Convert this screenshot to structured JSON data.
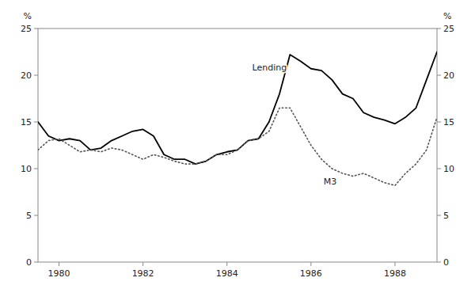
{
  "chart_data": {
    "type": "line",
    "x": [
      1979.5,
      1979.75,
      1980.0,
      1980.25,
      1980.5,
      1980.75,
      1981.0,
      1981.25,
      1981.5,
      1981.75,
      1982.0,
      1982.25,
      1982.5,
      1982.75,
      1983.0,
      1983.25,
      1983.5,
      1983.75,
      1984.0,
      1984.25,
      1984.5,
      1984.75,
      1985.0,
      1985.25,
      1985.5,
      1985.75,
      1986.0,
      1986.25,
      1986.5,
      1986.75,
      1987.0,
      1987.25,
      1987.5,
      1987.75,
      1988.0,
      1988.25,
      1988.5,
      1988.75,
      1989.0
    ],
    "series": [
      {
        "color": "#000000",
        "line_style": "solid",
        "values": [
          15.0,
          13.5,
          13.0,
          13.2,
          13.0,
          12.0,
          12.2,
          13.0,
          13.5,
          14.0,
          14.2,
          13.5,
          11.5,
          11.0,
          11.0,
          10.5,
          10.8,
          11.5,
          11.8,
          12.0,
          13.0,
          13.2,
          15.0,
          18.0,
          22.2,
          21.5,
          20.7,
          20.5,
          19.5,
          18.0,
          17.5,
          16.0,
          15.5,
          15.2,
          14.8,
          15.5,
          16.5,
          19.5,
          22.5
        ]
      },
      {
        "color": "#555555",
        "line_style": "dotted",
        "values": [
          12.0,
          13.0,
          13.2,
          12.5,
          11.8,
          12.0,
          11.8,
          12.2,
          12.0,
          11.5,
          11.0,
          11.5,
          11.2,
          10.8,
          10.5,
          10.5,
          10.8,
          11.5,
          11.5,
          12.0,
          13.0,
          13.2,
          14.0,
          16.5,
          16.5,
          14.5,
          12.5,
          11.0,
          10.0,
          9.5,
          9.2,
          9.5,
          9.0,
          8.5,
          8.2,
          9.5,
          10.5,
          12.0,
          15.5
        ]
      }
    ],
    "annotations": [
      {
        "text": "Lending",
        "x": 1984.6,
        "y": 20.5
      },
      {
        "text": "M3",
        "x": 1986.3,
        "y": 8.3
      }
    ],
    "ylabel": "%",
    "y2label": "%",
    "xlim": [
      1979.5,
      1989.0
    ],
    "xticks": [
      1980,
      1982,
      1984,
      1986,
      1988
    ],
    "ylim": [
      0,
      25
    ],
    "yticks": [
      0,
      5,
      10,
      15,
      20,
      25
    ],
    "y2lim": [
      0,
      25
    ],
    "y2ticks": [
      0,
      5,
      10,
      15,
      20,
      25
    ],
    "grid": false
  }
}
